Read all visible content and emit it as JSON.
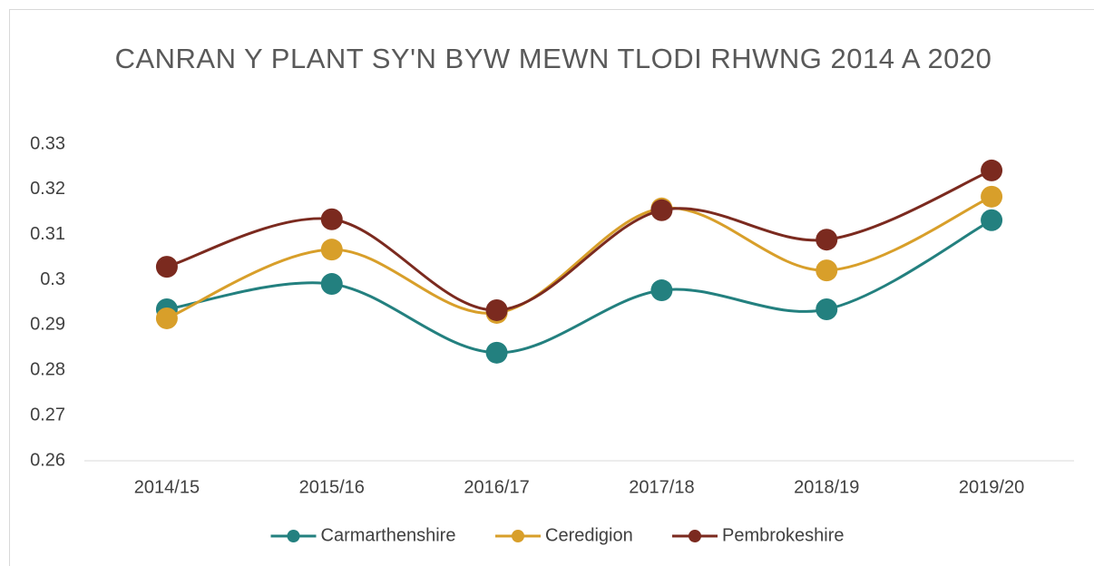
{
  "chart_data": {
    "type": "line",
    "title": "CANRAN Y PLANT SY'N BYW MEWN TLODI RHWNG 2014 A 2020",
    "categories": [
      "2014/15",
      "2015/16",
      "2016/17",
      "2017/18",
      "2018/19",
      "2019/20"
    ],
    "series": [
      {
        "name": "Carmarthenshire",
        "color": "#23807f",
        "values": [
          0.2935,
          0.2991,
          0.2839,
          0.2977,
          0.2935,
          0.3132
        ]
      },
      {
        "name": "Ceredigion",
        "color": "#d89f2a",
        "values": [
          0.2915,
          0.3067,
          0.2927,
          0.3158,
          0.3021,
          0.3184
        ]
      },
      {
        "name": "Pembrokeshire",
        "color": "#7b2a1f",
        "values": [
          0.3029,
          0.3134,
          0.2933,
          0.3154,
          0.3089,
          0.3242
        ]
      }
    ],
    "ylim": [
      0.26,
      0.33
    ],
    "yticks": [
      0.26,
      0.27,
      0.28,
      0.29,
      0.3,
      0.31,
      0.32,
      0.33
    ],
    "grid": false,
    "smooth": true,
    "legend": "bottom"
  }
}
